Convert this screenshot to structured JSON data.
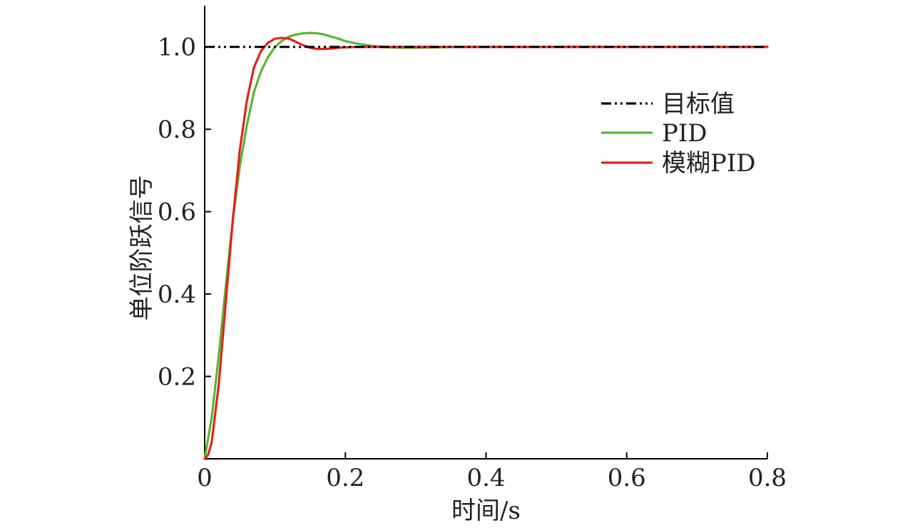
{
  "chart_data": {
    "type": "line",
    "title": "",
    "xlabel": "时间/s",
    "ylabel": "单位阶跃信号",
    "xlim": [
      0,
      0.8
    ],
    "ylim": [
      0,
      1.1
    ],
    "xticks": [
      0,
      0.2,
      0.4,
      0.6,
      0.8
    ],
    "xtick_labels": [
      "0",
      "0.2",
      "0.4",
      "0.6",
      "0.8"
    ],
    "yticks": [
      0.2,
      0.4,
      0.6,
      0.8,
      1.0
    ],
    "ytick_labels": [
      "0.2",
      "0.4",
      "0.6",
      "0.8",
      "1.0"
    ],
    "grid": false,
    "legend_position": "center-right",
    "series": [
      {
        "name": "目标值",
        "color": "#000000",
        "style": "dash-dot-dot",
        "x": [
          0,
          0.8
        ],
        "y": [
          1.0,
          1.0
        ]
      },
      {
        "name": "PID",
        "color": "#5bb535",
        "style": "solid",
        "x": [
          0,
          0.01,
          0.02,
          0.03,
          0.04,
          0.05,
          0.06,
          0.07,
          0.08,
          0.09,
          0.1,
          0.11,
          0.12,
          0.13,
          0.14,
          0.15,
          0.16,
          0.17,
          0.18,
          0.19,
          0.2,
          0.22,
          0.24,
          0.26,
          0.28,
          0.3,
          0.33,
          0.36,
          0.4,
          0.5,
          0.6,
          0.7,
          0.8
        ],
        "y": [
          0,
          0.1,
          0.25,
          0.42,
          0.58,
          0.71,
          0.81,
          0.89,
          0.94,
          0.975,
          1.0,
          1.015,
          1.025,
          1.03,
          1.033,
          1.034,
          1.033,
          1.03,
          1.025,
          1.02,
          1.014,
          1.007,
          1.002,
          0.999,
          0.998,
          0.998,
          0.999,
          1.0,
          1.0,
          1.0,
          1.0,
          1.0,
          1.0
        ]
      },
      {
        "name": "模糊PID",
        "color": "#e0241b",
        "style": "solid",
        "x": [
          0,
          0.005,
          0.01,
          0.02,
          0.03,
          0.04,
          0.05,
          0.06,
          0.07,
          0.08,
          0.09,
          0.1,
          0.11,
          0.12,
          0.13,
          0.14,
          0.15,
          0.16,
          0.17,
          0.18,
          0.19,
          0.2,
          0.22,
          0.25,
          0.3,
          0.4,
          0.5,
          0.6,
          0.7,
          0.8
        ],
        "y": [
          0,
          0.01,
          0.04,
          0.18,
          0.38,
          0.58,
          0.75,
          0.87,
          0.95,
          0.99,
          1.01,
          1.02,
          1.022,
          1.02,
          1.012,
          1.004,
          0.998,
          0.995,
          0.995,
          0.996,
          0.998,
          0.999,
          1.0,
          1.0,
          1.0,
          1.0,
          1.0,
          1.0,
          1.0,
          1.0
        ]
      }
    ]
  }
}
